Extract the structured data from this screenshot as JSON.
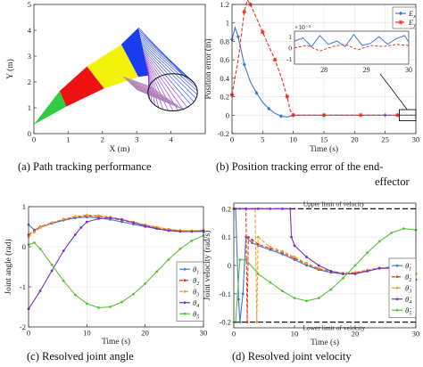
{
  "captions": {
    "a": "(a)  Path tracking performance",
    "b_line1": "(b)  Position tracking error of the end-",
    "b_line2": "effector",
    "c": "(c)  Resolved joint angle",
    "d": "(d)  Resolved joint velocity"
  },
  "chart_data": [
    {
      "id": "a",
      "type": "diagram",
      "xlabel": "X (m)",
      "ylabel": "Y (m)",
      "xlim": [
        0,
        5
      ],
      "ylim": [
        0,
        5
      ],
      "xticks": [
        "0",
        "1",
        "2",
        "3",
        "4"
      ],
      "yticks": [
        "0",
        "1",
        "2",
        "3",
        "4",
        "5"
      ],
      "segment_colors": [
        "#2ecc40",
        "#ee1111",
        "#f2f20a",
        "#1a3cf0",
        "#8a2be2"
      ],
      "sweep_fan_colors": [
        "#9aa0e8",
        "#c0507a"
      ],
      "desired_circle": {
        "center": [
          4.05,
          1.6
        ],
        "radius": 0.72,
        "color": "#111111"
      },
      "base_point": [
        0,
        0.35
      ]
    },
    {
      "id": "b",
      "type": "line",
      "xlabel": "Time (s)",
      "ylabel": "Position error (m)",
      "xlim": [
        0,
        30
      ],
      "ylim": [
        -0.2,
        1.2
      ],
      "xticks": [
        "0",
        "5",
        "10",
        "15",
        "20",
        "25",
        "30"
      ],
      "yticks": [
        "-0.2",
        "0",
        "0.2",
        "0.4",
        "0.6",
        "0.8",
        "1",
        "1.2"
      ],
      "series": [
        {
          "name": "E",
          "sub": "x",
          "color": "#3a7bd5",
          "dash": "",
          "marker": "diamond",
          "x": [
            0,
            0.5,
            1,
            1.5,
            2,
            3,
            4,
            5,
            6,
            7,
            8,
            9,
            10,
            12,
            15,
            20,
            25,
            30
          ],
          "y": [
            0.82,
            0.95,
            0.85,
            0.7,
            0.55,
            0.36,
            0.24,
            0.14,
            0.07,
            0.02,
            -0.01,
            -0.02,
            0.0,
            0.0,
            0.0,
            0.0,
            0.0,
            0.0
          ]
        },
        {
          "name": "E",
          "sub": "y",
          "color": "#e8321e",
          "dash": "4,2",
          "marker": "star",
          "x": [
            0,
            1,
            2,
            2.5,
            3,
            4,
            5,
            6,
            7,
            8,
            9,
            9.5,
            10,
            12,
            15,
            18,
            21,
            24,
            27,
            30
          ],
          "y": [
            0.22,
            0.6,
            1.12,
            1.25,
            1.2,
            1.05,
            0.9,
            0.75,
            0.6,
            0.42,
            0.2,
            0.05,
            0.0,
            0.0,
            0.0,
            0.0,
            0.0,
            0.0,
            0.0,
            0.0
          ]
        }
      ],
      "inset": {
        "exponent": "×10⁻⁵",
        "xlim": [
          27.3,
          30
        ],
        "ylim": [
          -1.5,
          1.5
        ],
        "xticks": [
          "28",
          "29",
          "30"
        ],
        "yticks": [
          "1",
          "0",
          "-1"
        ],
        "series": [
          {
            "color": "#3a7bd5",
            "dash": "",
            "x": [
              27.3,
              27.5,
              27.7,
              27.9,
              28.1,
              28.3,
              28.5,
              28.7,
              28.9,
              29.1,
              29.3,
              29.5,
              29.7,
              29.9,
              30.0
            ],
            "y": [
              0.6,
              0.9,
              0.1,
              1.1,
              0.3,
              0.6,
              0.1,
              1.2,
              0.2,
              0.4,
              1.0,
              0.3,
              0.8,
              1.1,
              0.5
            ]
          },
          {
            "color": "#e8321e",
            "dash": "3,2",
            "x": [
              27.3,
              27.6,
              27.9,
              28.2,
              28.5,
              28.8,
              29.1,
              29.4,
              29.7,
              30.0
            ],
            "y": [
              0.0,
              0.2,
              -0.3,
              0.1,
              0.3,
              -0.2,
              0.2,
              0.1,
              0.3,
              0.2
            ]
          }
        ]
      }
    },
    {
      "id": "c",
      "type": "line",
      "xlabel": "Time (s)",
      "ylabel": "Joint angle (rad)",
      "xlim": [
        0,
        30
      ],
      "ylim": [
        -2,
        1
      ],
      "xticks": [
        "0",
        "10",
        "20",
        "30"
      ],
      "yticks": [
        "-2",
        "-1",
        "0",
        "1"
      ],
      "series": [
        {
          "name": "θ",
          "sub": "1",
          "color": "#3a7bd5",
          "dash": "",
          "x": [
            0,
            1,
            2,
            4,
            6,
            8,
            10,
            12,
            14,
            16,
            18,
            20,
            22,
            24,
            26,
            28,
            30
          ],
          "y": [
            0.55,
            0.42,
            0.48,
            0.58,
            0.66,
            0.72,
            0.74,
            0.72,
            0.68,
            0.62,
            0.56,
            0.5,
            0.45,
            0.41,
            0.39,
            0.38,
            0.38
          ]
        },
        {
          "name": "θ",
          "sub": "2",
          "color": "#e8321e",
          "dash": "4,2",
          "x": [
            0,
            1,
            2,
            4,
            6,
            8,
            10,
            12,
            14,
            16,
            18,
            20,
            22,
            24,
            26,
            28,
            30
          ],
          "y": [
            0.3,
            0.4,
            0.5,
            0.6,
            0.68,
            0.74,
            0.77,
            0.76,
            0.72,
            0.66,
            0.6,
            0.54,
            0.48,
            0.43,
            0.4,
            0.39,
            0.4
          ]
        },
        {
          "name": "θ",
          "sub": "3",
          "color": "#f0a020",
          "dash": "4,2",
          "x": [
            0,
            1,
            2,
            4,
            6,
            8,
            10,
            12,
            14,
            16,
            18,
            20,
            22,
            24,
            26,
            28,
            30
          ],
          "y": [
            0.25,
            0.36,
            0.48,
            0.6,
            0.69,
            0.76,
            0.79,
            0.78,
            0.74,
            0.68,
            0.62,
            0.55,
            0.49,
            0.44,
            0.41,
            0.4,
            0.41
          ]
        },
        {
          "name": "θ",
          "sub": "4",
          "color": "#7b2fbf",
          "dash": "",
          "x": [
            0,
            2,
            4,
            6,
            8,
            9,
            10,
            12,
            14,
            16,
            18,
            20,
            22,
            24,
            26,
            28,
            30
          ],
          "y": [
            -1.55,
            -1.1,
            -0.6,
            -0.1,
            0.3,
            0.48,
            0.62,
            0.7,
            0.72,
            0.68,
            0.6,
            0.52,
            0.45,
            0.4,
            0.38,
            0.38,
            0.4
          ]
        },
        {
          "name": "θ",
          "sub": "5",
          "color": "#5ac23a",
          "dash": "",
          "x": [
            0,
            1,
            2,
            4,
            6,
            8,
            10,
            12,
            14,
            16,
            18,
            20,
            22,
            24,
            26,
            28,
            30
          ],
          "y": [
            0.05,
            0.1,
            -0.05,
            -0.45,
            -0.85,
            -1.2,
            -1.42,
            -1.52,
            -1.5,
            -1.38,
            -1.18,
            -0.92,
            -0.62,
            -0.32,
            -0.05,
            0.15,
            0.28
          ]
        }
      ]
    },
    {
      "id": "d",
      "type": "line",
      "xlabel": "Time (s)",
      "ylabel": "Joint velocity (rad/s)",
      "xlim": [
        0,
        30
      ],
      "ylim": [
        -0.22,
        0.22
      ],
      "xticks": [
        "0",
        "10",
        "20",
        "30"
      ],
      "yticks": [
        "-0.2",
        "-0.1",
        "0",
        "0.1",
        "0.2"
      ],
      "annotations": {
        "upper": "Upper limit of velocity",
        "lower": "Lower limit of velocity"
      },
      "limits": {
        "upper": 0.2,
        "lower": -0.2,
        "color": "#111111"
      },
      "series": [
        {
          "name": "θ̇",
          "sub": "1",
          "color": "#3a7bd5",
          "dash": "",
          "x": [
            0,
            0.3,
            0.8,
            1,
            1.5,
            2,
            3,
            4,
            6,
            8,
            10,
            12,
            14,
            16,
            18,
            20,
            22,
            24,
            26,
            28,
            30
          ],
          "y": [
            0.2,
            0.2,
            -0.12,
            -0.2,
            -0.1,
            0.1,
            0.08,
            0.07,
            0.055,
            0.04,
            0.02,
            0.0,
            -0.015,
            -0.025,
            -0.03,
            -0.028,
            -0.02,
            -0.01,
            -0.005,
            -0.01,
            -0.03
          ]
        },
        {
          "name": "θ̇",
          "sub": "2",
          "color": "#e8321e",
          "dash": "4,2",
          "x": [
            0,
            1,
            2,
            2.2,
            2.4,
            3,
            4,
            6,
            8,
            10,
            12,
            14,
            16,
            18,
            20,
            22,
            24,
            26,
            28,
            30
          ],
          "y": [
            0.2,
            0.2,
            0.2,
            -0.2,
            0.1,
            0.09,
            0.075,
            0.06,
            0.045,
            0.025,
            0.005,
            -0.012,
            -0.022,
            -0.028,
            -0.026,
            -0.018,
            -0.01,
            -0.008,
            -0.015,
            -0.03
          ]
        },
        {
          "name": "θ̇",
          "sub": "3",
          "color": "#f0a020",
          "dash": "4,2",
          "x": [
            0,
            1,
            2,
            3,
            3.5,
            3.8,
            4,
            6,
            8,
            10,
            12,
            14,
            16,
            18,
            20,
            22,
            24,
            26,
            28,
            30
          ],
          "y": [
            0.2,
            0.2,
            0.2,
            0.2,
            0.2,
            -0.2,
            0.1,
            0.065,
            0.05,
            0.03,
            0.008,
            -0.01,
            -0.02,
            -0.026,
            -0.024,
            -0.016,
            -0.008,
            -0.008,
            -0.016,
            -0.03
          ]
        },
        {
          "name": "θ̇",
          "sub": "4",
          "color": "#7b2fbf",
          "dash": "",
          "x": [
            0,
            2,
            4,
            6,
            8,
            9.3,
            9.5,
            10,
            12,
            14,
            16,
            18,
            20,
            22,
            24,
            26,
            28,
            30
          ],
          "y": [
            0.2,
            0.2,
            0.2,
            0.2,
            0.2,
            0.2,
            0.1,
            0.07,
            0.03,
            0.0,
            -0.02,
            -0.03,
            -0.03,
            -0.02,
            -0.01,
            -0.01,
            -0.025,
            -0.05
          ]
        },
        {
          "name": "θ̇",
          "sub": "5",
          "color": "#5ac23a",
          "dash": "",
          "x": [
            0,
            0.3,
            1,
            2,
            4,
            6,
            8,
            10,
            12,
            14,
            16,
            18,
            20,
            22,
            24,
            26,
            28,
            30
          ],
          "y": [
            -0.2,
            -0.2,
            0.02,
            0.02,
            -0.03,
            -0.06,
            -0.09,
            -0.115,
            -0.125,
            -0.115,
            -0.085,
            -0.045,
            0.0,
            0.045,
            0.085,
            0.115,
            0.13,
            0.125
          ]
        }
      ]
    }
  ]
}
